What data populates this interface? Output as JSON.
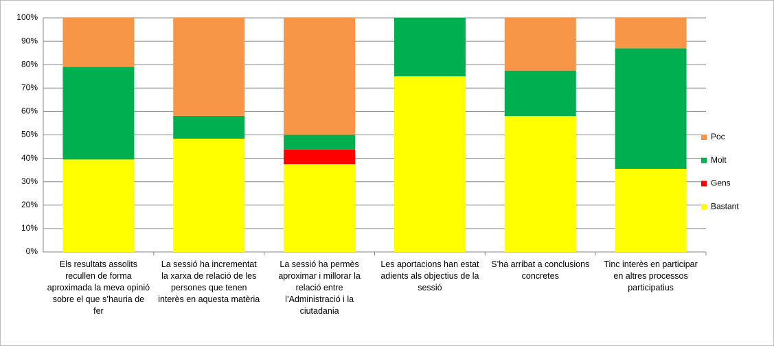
{
  "chart_data": {
    "type": "stacked_bar",
    "categories": [
      "Els resultats assolits recullen de forma aproximada la meva opinió sobre el que s’hauria de fer",
      "La sessió ha incrementat la xarxa de relació de les persones que tenen interès en aquesta matèria",
      "La sessió ha permès aproximar i millorar la relació entre l’Administració i la ciutadania",
      "Les aportacions han estat adients als objectius de la sessió",
      "S’ha arribat a conclusions concretes",
      "Tinc interès en participar en altres processos participatius"
    ],
    "series": [
      {
        "name": "Bastant",
        "color": "#ffff00",
        "values": [
          39.5,
          48.4,
          37.5,
          75,
          58,
          35.5
        ]
      },
      {
        "name": "Gens",
        "color": "#ff0000",
        "values": [
          0,
          0,
          6.25,
          0,
          0,
          0
        ]
      },
      {
        "name": "Molt",
        "color": "#00b050",
        "values": [
          39.5,
          9.7,
          6.25,
          25,
          19.5,
          51.5
        ]
      },
      {
        "name": "Poc",
        "color": "#f79646",
        "values": [
          21,
          41.9,
          50,
          0,
          22.5,
          13
        ]
      }
    ],
    "ylim": [
      0,
      100
    ],
    "yticks": [
      {
        "value": 0,
        "label": "0%"
      },
      {
        "value": 10,
        "label": "10%"
      },
      {
        "value": 20,
        "label": "20%"
      },
      {
        "value": 30,
        "label": "30%"
      },
      {
        "value": 40,
        "label": "40%"
      },
      {
        "value": 50,
        "label": "50%"
      },
      {
        "value": 60,
        "label": "60%"
      },
      {
        "value": 70,
        "label": "70%"
      },
      {
        "value": 80,
        "label": "80%"
      },
      {
        "value": 90,
        "label": "90%"
      },
      {
        "value": 100,
        "label": "100%"
      }
    ],
    "grid": true,
    "legend": "right"
  }
}
